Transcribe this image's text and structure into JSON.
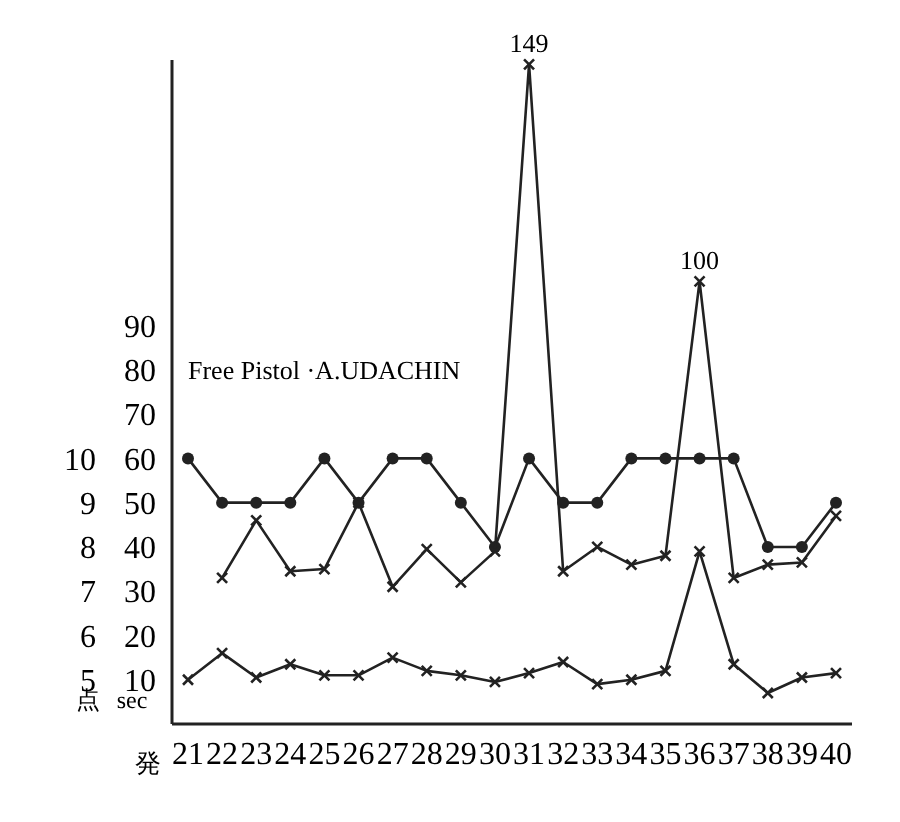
{
  "chart_data": {
    "type": "line",
    "title": "Free Pistol ·A.UDACHIN",
    "xlabel": "発",
    "ylabel": "sec",
    "y2label": "点",
    "categories": [
      "21",
      "22",
      "23",
      "24",
      "25",
      "26",
      "27",
      "28",
      "29",
      "30",
      "31",
      "32",
      "33",
      "34",
      "35",
      "36",
      "37",
      "38",
      "39",
      "40"
    ],
    "series": [
      {
        "axis": "y2",
        "marker": "circle",
        "color": "#222222",
        "values": [
          10,
          9,
          9,
          9,
          10,
          9,
          10,
          10,
          9,
          8,
          10,
          9,
          9,
          10,
          10,
          10,
          10,
          8,
          8,
          9
        ]
      },
      {
        "marker": "cross",
        "color": "#222222",
        "values": [
          null,
          33,
          46,
          34.5,
          35,
          50,
          31,
          39.5,
          32,
          39,
          149,
          34.5,
          40,
          36,
          38,
          100,
          33,
          36,
          36.5,
          47
        ],
        "value_labels": [
          null,
          null,
          null,
          null,
          null,
          null,
          null,
          null,
          null,
          null,
          "149",
          null,
          null,
          null,
          null,
          "100",
          null,
          null,
          null,
          null
        ]
      },
      {
        "marker": "cross",
        "color": "#222222",
        "values": [
          10,
          16,
          10.5,
          13.5,
          11,
          11,
          15,
          12,
          11,
          9.5,
          11.5,
          14,
          9,
          10,
          12,
          39,
          13.5,
          7,
          10.5,
          11.5
        ]
      }
    ],
    "ylim": [
      0,
      150
    ],
    "yticks": [
      10,
      20,
      30,
      40,
      50,
      60,
      70,
      80,
      90
    ],
    "y2lim": [
      4,
      19
    ],
    "y2ticks": [
      5,
      6,
      7,
      8,
      9,
      10
    ],
    "grid": false
  }
}
